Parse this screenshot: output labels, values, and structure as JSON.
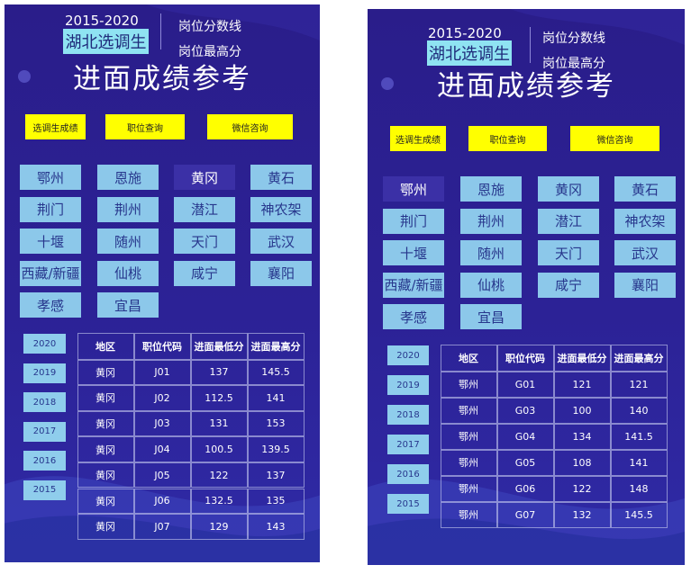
{
  "panels": [
    {
      "header": {
        "years": "2015-2020",
        "title": "湖北选调生",
        "subtitle1": "岗位分数线",
        "subtitle2": "岗位最高分"
      },
      "heading": "进面成绩参考",
      "buttons": [
        "选调生成绩",
        "职位查询",
        "微信咨询"
      ],
      "regions": [
        "鄂州",
        "恩施",
        "黄冈",
        "黄石",
        "荆门",
        "荆州",
        "潜江",
        "神农架",
        "十堰",
        "随州",
        "天门",
        "武汉",
        "西藏/新疆",
        "仙桃",
        "咸宁",
        "襄阳",
        "孝感",
        "宜昌"
      ],
      "selected_region": "黄冈",
      "year_buttons": [
        "2020",
        "2019",
        "2018",
        "2017",
        "2016",
        "2015"
      ],
      "table": {
        "columns": [
          "地区",
          "职位代码",
          "进面最低分",
          "进面最高分"
        ],
        "rows": [
          [
            "黄冈",
            "J01",
            137,
            145.5
          ],
          [
            "黄冈",
            "J02",
            112.5,
            141
          ],
          [
            "黄冈",
            "J03",
            131,
            153
          ],
          [
            "黄冈",
            "J04",
            100.5,
            139.5
          ],
          [
            "黄冈",
            "J05",
            122,
            137
          ],
          [
            "黄冈",
            "J06",
            132.5,
            135
          ],
          [
            "黄冈",
            "J07",
            129,
            143
          ]
        ]
      }
    },
    {
      "header": {
        "years": "2015-2020",
        "title": "湖北选调生",
        "subtitle1": "岗位分数线",
        "subtitle2": "岗位最高分"
      },
      "heading": "进面成绩参考",
      "buttons": [
        "选调生成绩",
        "职位查询",
        "微信咨询"
      ],
      "regions": [
        "鄂州",
        "恩施",
        "黄冈",
        "黄石",
        "荆门",
        "荆州",
        "潜江",
        "神农架",
        "十堰",
        "随州",
        "天门",
        "武汉",
        "西藏/新疆",
        "仙桃",
        "咸宁",
        "襄阳",
        "孝感",
        "宜昌"
      ],
      "selected_region": "鄂州",
      "year_buttons": [
        "2020",
        "2019",
        "2018",
        "2017",
        "2016",
        "2015"
      ],
      "table": {
        "columns": [
          "地区",
          "职位代码",
          "进面最低分",
          "进面最高分"
        ],
        "rows": [
          [
            "鄂州",
            "G01",
            121,
            121
          ],
          [
            "鄂州",
            "G03",
            100,
            140
          ],
          [
            "鄂州",
            "G04",
            134,
            141.5
          ],
          [
            "鄂州",
            "G05",
            108,
            141
          ],
          [
            "鄂州",
            "G06",
            122,
            148
          ],
          [
            "鄂州",
            "G07",
            132,
            145.5
          ]
        ]
      }
    }
  ]
}
